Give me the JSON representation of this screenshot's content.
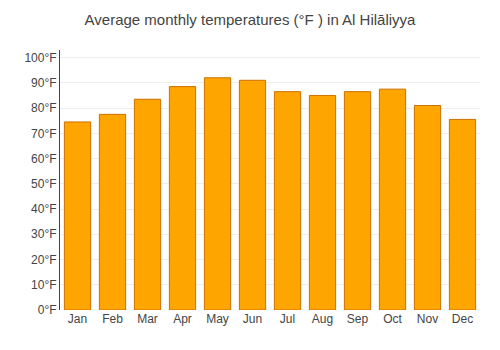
{
  "chart_data": {
    "type": "bar",
    "title": "Average monthly temperatures (°F ) in Al Hilāliyya",
    "categories": [
      "Jan",
      "Feb",
      "Mar",
      "Apr",
      "May",
      "Jun",
      "Jul",
      "Aug",
      "Sep",
      "Oct",
      "Nov",
      "Dec"
    ],
    "values": [
      74.5,
      77.5,
      83.5,
      88.5,
      92.0,
      91.0,
      86.5,
      85.0,
      86.5,
      87.5,
      81.0,
      75.5
    ],
    "color": "#FFA500",
    "ylim": [
      0,
      103
    ],
    "yticks": [
      {
        "value": 0,
        "label": "0°F"
      },
      {
        "value": 10,
        "label": "10°F"
      },
      {
        "value": 20,
        "label": "20°F"
      },
      {
        "value": 30,
        "label": "30°F"
      },
      {
        "value": 40,
        "label": "40°F"
      },
      {
        "value": 50,
        "label": "50°F"
      },
      {
        "value": 60,
        "label": "60°F"
      },
      {
        "value": 70,
        "label": "70°F"
      },
      {
        "value": 80,
        "label": "80°F"
      },
      {
        "value": 90,
        "label": "90°F"
      },
      {
        "value": 100,
        "label": "100°F"
      }
    ],
    "grid": true
  }
}
